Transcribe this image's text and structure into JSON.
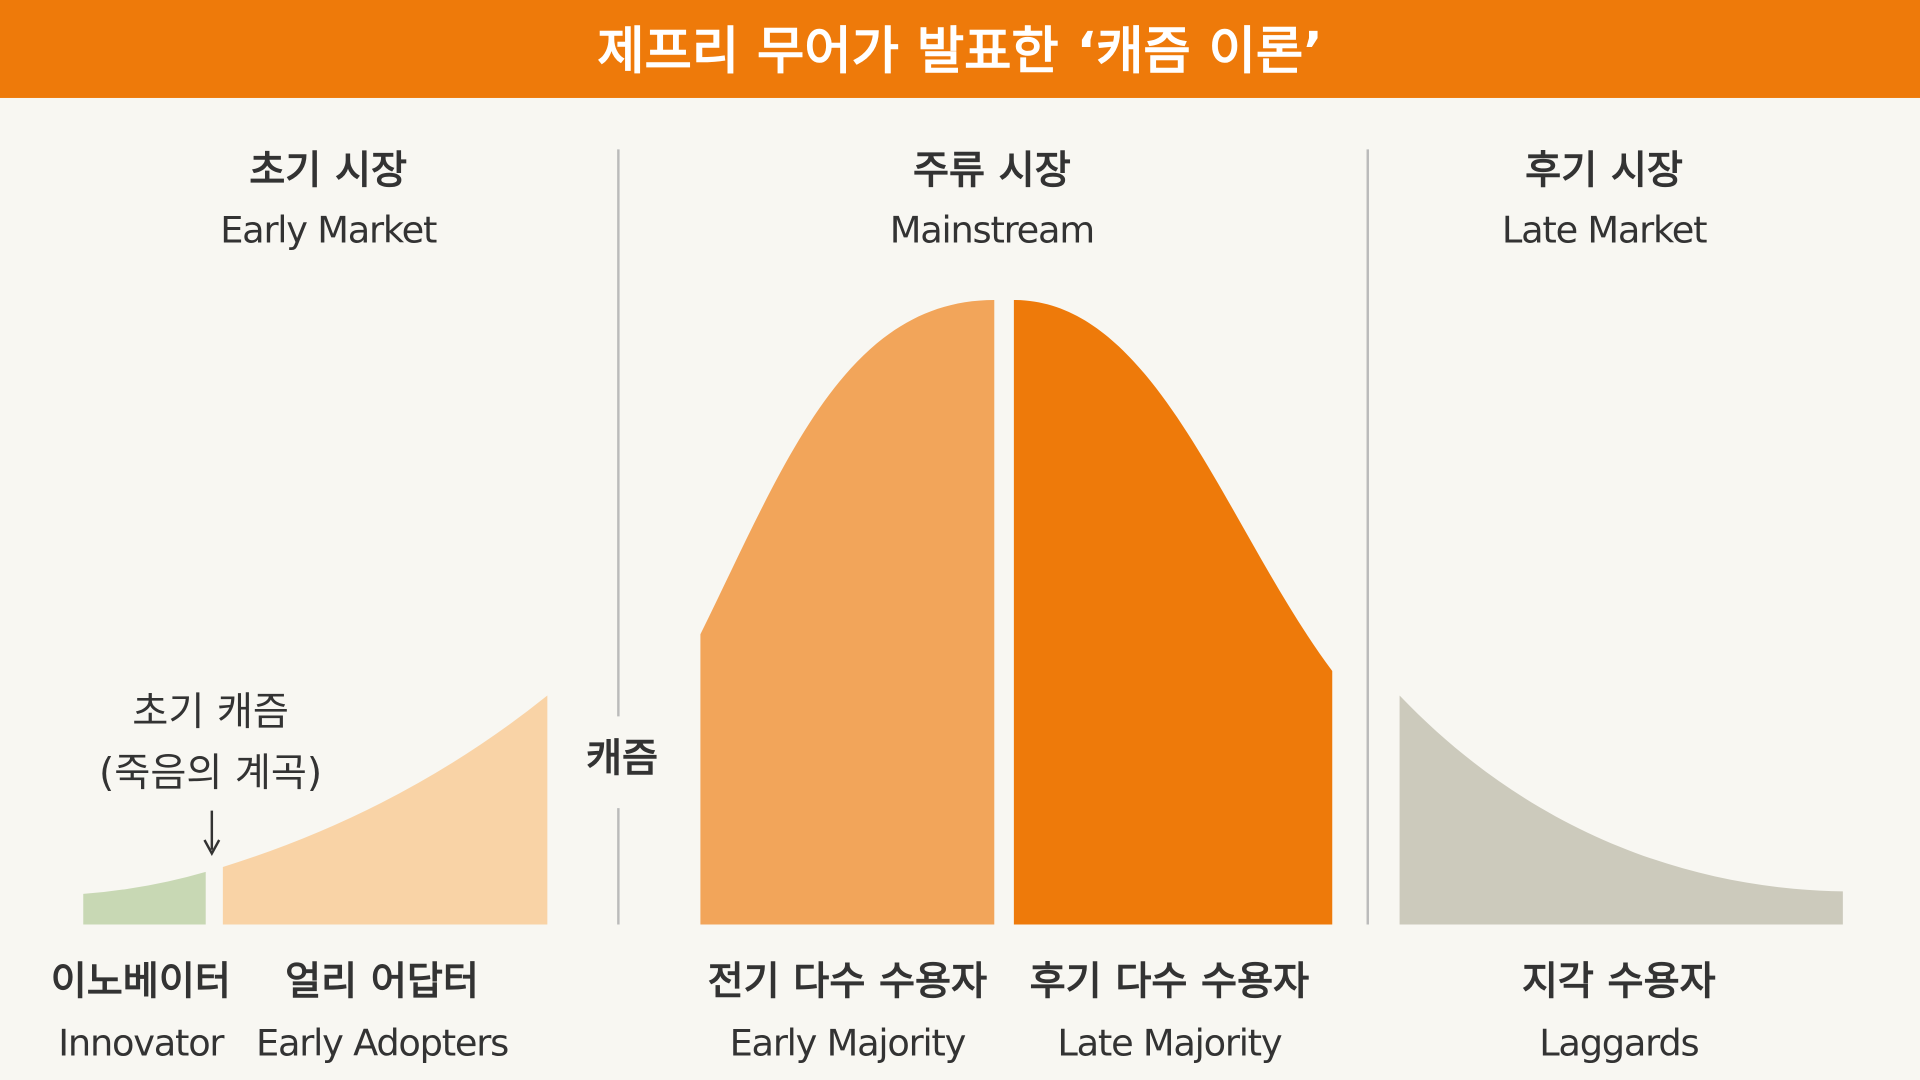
{
  "title": "제프리 무어가 발표한 ‘캐즘 이론’",
  "colors": {
    "header": "#EE7A0A",
    "background": "#F8F7F2",
    "innovator": "#C8D8B4",
    "early_adopters": "#F9D3A6",
    "early_majority": "#F2A55A",
    "late_majority": "#EE7A0A",
    "laggards": "#CCCABC"
  },
  "sections": [
    {
      "ko": "초기 시장",
      "en": "Early Market"
    },
    {
      "ko": "주류 시장",
      "en": "Mainstream"
    },
    {
      "ko": "후기 시장",
      "en": "Late Market"
    }
  ],
  "early_chasm": {
    "line1": "초기 캐즘",
    "line2": "(죽음의 계곡)"
  },
  "chasm_label": "캐즘",
  "groups": [
    {
      "ko": "이노베이터",
      "en": "Innovator"
    },
    {
      "ko": "얼리 어답터",
      "en": "Early Adopters"
    },
    {
      "ko": "전기 다수 수용자",
      "en": "Early Majority"
    },
    {
      "ko": "후기 다수 수용자",
      "en": "Late Majority"
    },
    {
      "ko": "지각 수용자",
      "en": "Laggards"
    }
  ]
}
